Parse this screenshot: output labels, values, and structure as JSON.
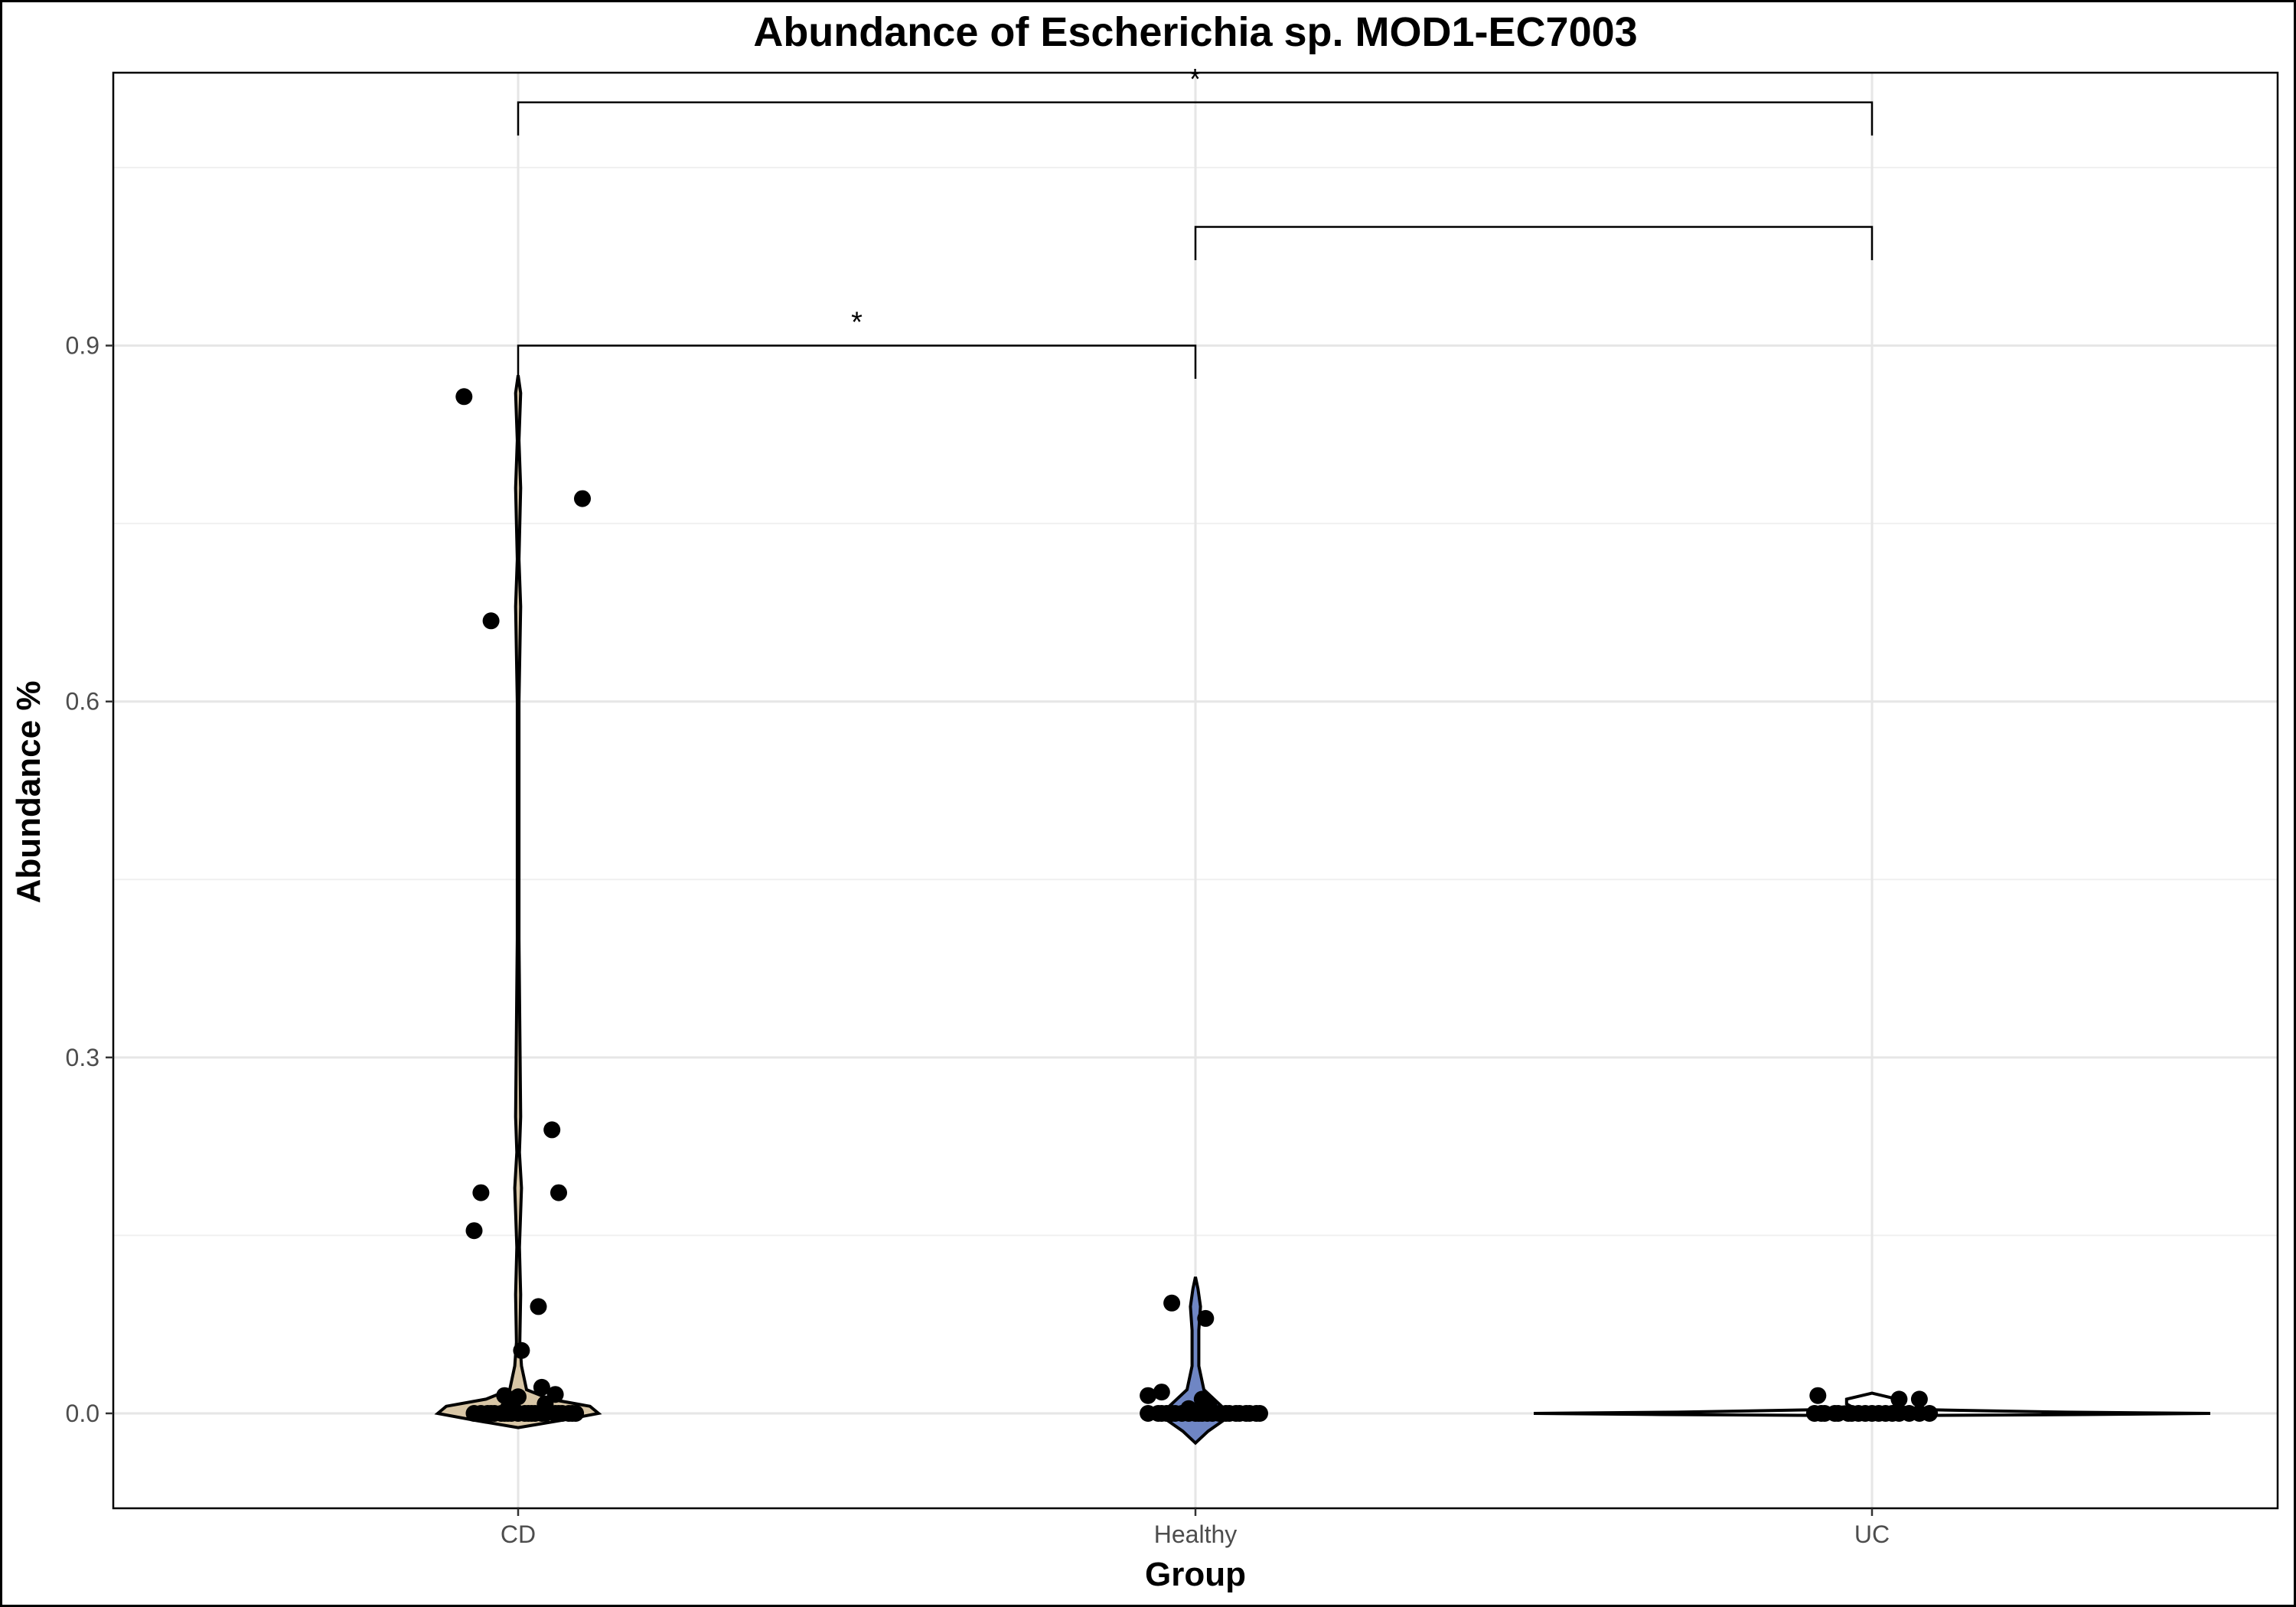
{
  "chart_data": {
    "type": "violin",
    "title": "Abundance of Escherichia sp. MOD1-EC7003",
    "xlabel": "Group",
    "ylabel": "Abundance %",
    "ylim": [
      -0.08,
      1.13
    ],
    "yticks": [
      0.0,
      0.3,
      0.6,
      0.9
    ],
    "ytick_labels": [
      "0.0",
      "0.3",
      "0.6",
      "0.9"
    ],
    "grid": true,
    "categories": [
      "CD",
      "Healthy",
      "UC"
    ],
    "colors": {
      "CD": "#d8c6a6",
      "Healthy": "#6f86c4",
      "UC": "#ffffff"
    },
    "violins": [
      {
        "group": "CD",
        "profile": [
          [
            -0.012,
            0.0
          ],
          [
            -0.006,
            50
          ],
          [
            0.0,
            95
          ],
          [
            0.006,
            85
          ],
          [
            0.012,
            38
          ],
          [
            0.02,
            10
          ],
          [
            0.04,
            4
          ],
          [
            0.06,
            2
          ],
          [
            0.1,
            3
          ],
          [
            0.14,
            1.5
          ],
          [
            0.19,
            4
          ],
          [
            0.22,
            1.5
          ],
          [
            0.25,
            3
          ],
          [
            0.4,
            1
          ],
          [
            0.6,
            1
          ],
          [
            0.68,
            3
          ],
          [
            0.72,
            1
          ],
          [
            0.78,
            3
          ],
          [
            0.82,
            1
          ],
          [
            0.86,
            3
          ],
          [
            0.875,
            0
          ]
        ]
      },
      {
        "group": "Healthy",
        "profile": [
          [
            -0.025,
            0.0
          ],
          [
            -0.015,
            15
          ],
          [
            -0.005,
            35
          ],
          [
            0.0,
            40
          ],
          [
            0.008,
            28
          ],
          [
            0.02,
            10
          ],
          [
            0.04,
            4
          ],
          [
            0.07,
            4
          ],
          [
            0.09,
            6
          ],
          [
            0.105,
            3
          ],
          [
            0.115,
            0
          ]
        ]
      },
      {
        "group": "UC",
        "profile": [
          [
            -0.002,
            0.0
          ],
          [
            -0.001,
            250
          ],
          [
            0.0,
            400
          ],
          [
            0.001,
            230
          ],
          [
            0.003,
            70
          ],
          [
            0.006,
            25
          ],
          [
            0.008,
            30
          ],
          [
            0.012,
            30
          ],
          [
            0.015,
            12
          ],
          [
            0.017,
            0
          ]
        ]
      }
    ],
    "points": [
      {
        "group": "CD",
        "jitter": [
          -0.16,
          0.19,
          -0.08,
          -0.11,
          -0.13,
          0.1,
          0.12,
          0.06,
          0.11,
          0.01,
          -0.04,
          -0.0,
          -0.13,
          -0.11,
          -0.09,
          -0.08,
          -0.07,
          -0.05,
          -0.04,
          -0.03,
          -0.02,
          0.0,
          0.02,
          0.03,
          0.04,
          0.05,
          0.07,
          0.08,
          0.11,
          0.12,
          0.13,
          0.15,
          0.16,
          0.17,
          0.07,
          0.08,
          -0.03,
          -0.01
        ],
        "y": [
          0.857,
          0.771,
          0.668,
          0.186,
          0.154,
          0.239,
          0.186,
          0.09,
          0.016,
          0.053,
          0.015,
          0.014,
          0.0,
          0.0,
          0.0,
          0.0,
          0.0,
          0.0,
          0.0,
          0.0,
          0.0,
          0.0,
          0.0,
          0.0,
          0.0,
          0.0,
          0.0,
          0.0,
          0.0,
          0.0,
          0.0,
          0.0,
          0.0,
          0.0,
          0.022,
          0.008,
          0.004,
          0.002
        ]
      },
      {
        "group": "Healthy",
        "jitter": [
          -0.07,
          0.03,
          -0.14,
          -0.11,
          -0.1,
          -0.085,
          -0.07,
          -0.06,
          -0.04,
          -0.02,
          0.0,
          0.01,
          0.02,
          0.035,
          0.05,
          0.07,
          0.09,
          0.1,
          0.12,
          0.13,
          0.15,
          0.16,
          0.18,
          0.19,
          -0.14,
          -0.1,
          0.02,
          0.04,
          -0.02
        ],
        "y": [
          0.093,
          0.08,
          0.0,
          0.0,
          0.0,
          0.0,
          0.0,
          0.0,
          0.0,
          0.0,
          0.0,
          0.0,
          0.0,
          0.0,
          0.0,
          0.0,
          0.0,
          0.0,
          0.0,
          0.0,
          0.0,
          0.0,
          0.0,
          0.0,
          0.015,
          0.018,
          0.012,
          0.006,
          0.004
        ]
      },
      {
        "group": "UC",
        "jitter": [
          -0.16,
          -0.17,
          -0.15,
          -0.14,
          -0.11,
          -0.1,
          -0.07,
          -0.06,
          -0.04,
          -0.02,
          0.0,
          0.02,
          0.04,
          0.06,
          0.08,
          0.11,
          0.14,
          0.17,
          0.08,
          0.14
        ],
        "y": [
          0.015,
          0.0,
          0.0,
          0.0,
          0.0,
          0.0,
          0.0,
          0.0,
          0.0,
          0.0,
          0.0,
          0.0,
          0.0,
          0.0,
          0.0,
          0.0,
          0.0,
          0.0,
          0.012,
          0.012
        ]
      }
    ],
    "significance": [
      {
        "from": "CD",
        "to": "Healthy",
        "y": 0.9,
        "tick_down": 0.028,
        "label": "*"
      },
      {
        "from": "Healthy",
        "to": "UC",
        "y": 1.0,
        "tick_down": 0.028,
        "label": ""
      },
      {
        "from": "CD",
        "to": "UC",
        "y": 1.105,
        "tick_down": 0.028,
        "label": "*"
      }
    ]
  }
}
